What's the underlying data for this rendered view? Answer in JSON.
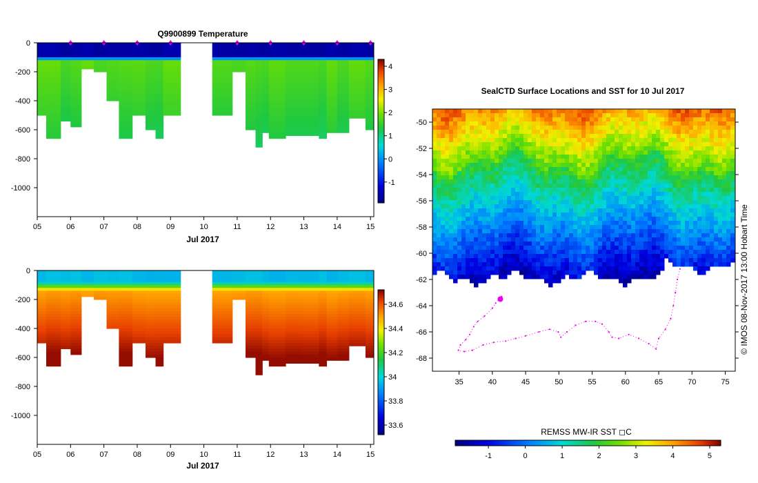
{
  "chart_data": [
    {
      "id": "temp",
      "type": "heatmap",
      "title": "Q9900899  Temperature",
      "xlabel": "Jul 2017",
      "xticks": [
        "05",
        "06",
        "07",
        "08",
        "09",
        "10",
        "11",
        "12",
        "13",
        "14",
        "15"
      ],
      "xlim": [
        5,
        15.1
      ],
      "ylim": [
        -1200,
        0
      ],
      "yticks": [
        "0",
        "-200",
        "-400",
        "-600",
        "-800",
        "-1000"
      ],
      "ytick_values": [
        0,
        -200,
        -400,
        -600,
        -800,
        -1000
      ],
      "colorbar_ticks": [
        "4",
        "3",
        "2",
        "1",
        "0",
        "-1"
      ],
      "colorbar_values": [
        4,
        3,
        2,
        1,
        0,
        -1
      ],
      "colorbar_range": [
        -1.9,
        4.3
      ],
      "profile_markers": [
        6.0,
        7.0,
        8.0,
        9.0,
        11.0,
        12.0,
        13.0,
        14.0,
        15.0
      ],
      "profiles": [
        {
          "x0": 5.0,
          "x1": 5.27,
          "depth": 500
        },
        {
          "x0": 5.27,
          "x1": 5.7,
          "depth": 650
        },
        {
          "x0": 5.7,
          "x1": 6.0,
          "depth": 540
        },
        {
          "x0": 6.0,
          "x1": 6.32,
          "depth": 580
        },
        {
          "x0": 6.32,
          "x1": 6.7,
          "depth": 180
        },
        {
          "x0": 6.7,
          "x1": 7.08,
          "depth": 200
        },
        {
          "x0": 7.08,
          "x1": 7.45,
          "depth": 400
        },
        {
          "x0": 7.45,
          "x1": 7.85,
          "depth": 650
        },
        {
          "x0": 7.85,
          "x1": 8.25,
          "depth": 500
        },
        {
          "x0": 8.25,
          "x1": 8.55,
          "depth": 600
        },
        {
          "x0": 8.55,
          "x1": 8.78,
          "depth": 660
        },
        {
          "x0": 8.78,
          "x1": 9.3,
          "depth": 500
        },
        {
          "x0": 10.25,
          "x1": 10.85,
          "depth": 500
        },
        {
          "x0": 10.85,
          "x1": 11.25,
          "depth": 200
        },
        {
          "x0": 11.25,
          "x1": 11.55,
          "depth": 600
        },
        {
          "x0": 11.55,
          "x1": 11.75,
          "depth": 710
        },
        {
          "x0": 11.75,
          "x1": 11.95,
          "depth": 620
        },
        {
          "x0": 11.95,
          "x1": 12.45,
          "depth": 650
        },
        {
          "x0": 12.45,
          "x1": 12.95,
          "depth": 630
        },
        {
          "x0": 12.95,
          "x1": 13.45,
          "depth": 625
        },
        {
          "x0": 13.45,
          "x1": 13.68,
          "depth": 650
        },
        {
          "x0": 13.68,
          "x1": 14.0,
          "depth": 610
        },
        {
          "x0": 14.0,
          "x1": 14.35,
          "depth": 620
        },
        {
          "x0": 14.35,
          "x1": 14.85,
          "depth": 520
        },
        {
          "x0": 14.85,
          "x1": 15.1,
          "depth": 600
        }
      ]
    },
    {
      "id": "sal",
      "type": "heatmap",
      "title": "",
      "xlabel": "Jul 2017",
      "xticks": [
        "05",
        "06",
        "07",
        "08",
        "09",
        "10",
        "11",
        "12",
        "13",
        "14",
        "15"
      ],
      "xlim": [
        5,
        15.1
      ],
      "ylim": [
        -1200,
        0
      ],
      "yticks": [
        "0",
        "-200",
        "-400",
        "-600",
        "-800",
        "-1000"
      ],
      "ytick_values": [
        0,
        -200,
        -400,
        -600,
        -800,
        -1000
      ],
      "colorbar_ticks": [
        "34.6",
        "34.4",
        "34.2",
        "34",
        "33.8",
        "33.6"
      ],
      "colorbar_values": [
        34.6,
        34.4,
        34.2,
        34.0,
        33.8,
        33.6
      ],
      "colorbar_range": [
        33.52,
        34.72
      ]
    },
    {
      "id": "sst",
      "type": "heatmap",
      "title": "SealCTD Surface Locations and SST for 10 Jul 2017",
      "xticks": [
        "35",
        "40",
        "45",
        "50",
        "55",
        "60",
        "65",
        "70",
        "75"
      ],
      "xtick_values": [
        35,
        40,
        45,
        50,
        55,
        60,
        65,
        70,
        75
      ],
      "xlim": [
        31,
        76.5
      ],
      "yticks": [
        "-50",
        "-52",
        "-54",
        "-56",
        "-58",
        "-60",
        "-62",
        "-64",
        "-66",
        "-68"
      ],
      "ytick_values": [
        -50,
        -52,
        -54,
        -56,
        -58,
        -60,
        -62,
        -64,
        -66,
        -68
      ],
      "ylim": [
        -69,
        -49
      ],
      "colorbar_label": "REMSS MW-IR SST ◻C",
      "colorbar_ticks": [
        "-1",
        "0",
        "1",
        "2",
        "3",
        "4",
        "5"
      ],
      "colorbar_values": [
        -1,
        0,
        1,
        2,
        3,
        4,
        5
      ],
      "colorbar_range": [
        -1.9,
        5.3
      ],
      "credit": "© IMOS 08-Nov-2017 13:00 Hobart Time",
      "track_color": "#ee00ee",
      "track": [
        [
          41.4,
          -63.3
        ],
        [
          41.0,
          -63.5
        ],
        [
          40.5,
          -63.8
        ],
        [
          40.0,
          -64.2
        ],
        [
          38.8,
          -64.8
        ],
        [
          37.8,
          -65.2
        ],
        [
          37.2,
          -65.6
        ],
        [
          36.6,
          -66.2
        ],
        [
          36.0,
          -66.6
        ],
        [
          35.2,
          -67.0
        ],
        [
          34.9,
          -67.4
        ],
        [
          35.8,
          -67.5
        ],
        [
          37.0,
          -67.4
        ],
        [
          38.6,
          -67.0
        ],
        [
          40.2,
          -66.8
        ],
        [
          42.0,
          -66.7
        ],
        [
          43.5,
          -66.5
        ],
        [
          45.0,
          -66.3
        ],
        [
          47.0,
          -66.0
        ],
        [
          48.6,
          -65.8
        ],
        [
          49.9,
          -66.0
        ],
        [
          50.3,
          -66.4
        ],
        [
          51.2,
          -66.0
        ],
        [
          52.5,
          -65.5
        ],
        [
          54.0,
          -65.2
        ],
        [
          55.5,
          -65.2
        ],
        [
          56.5,
          -65.4
        ],
        [
          57.5,
          -66.0
        ],
        [
          58.0,
          -66.4
        ],
        [
          59.0,
          -66.5
        ],
        [
          60.5,
          -66.2
        ],
        [
          62.0,
          -66.5
        ],
        [
          63.5,
          -66.9
        ],
        [
          64.6,
          -67.3
        ],
        [
          65.0,
          -66.5
        ],
        [
          66.0,
          -65.8
        ],
        [
          66.8,
          -65.0
        ],
        [
          67.2,
          -64.0
        ],
        [
          67.5,
          -63.0
        ],
        [
          67.8,
          -62.0
        ],
        [
          68.2,
          -61.2
        ]
      ],
      "track_cluster": [
        41.2,
        -63.5
      ]
    }
  ],
  "colors": {
    "track": "#ee00ee",
    "land": "#ffffff",
    "axis": "#000000"
  }
}
